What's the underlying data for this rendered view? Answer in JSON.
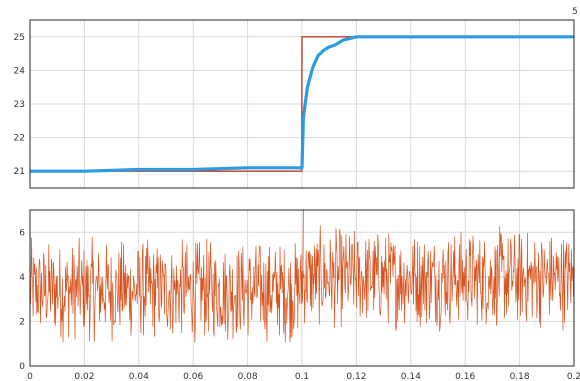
{
  "chart_data": [
    {
      "type": "line",
      "title": "",
      "xlabel": "",
      "ylabel": "",
      "xlim": [
        0,
        0.2
      ],
      "ylim": [
        20.5,
        25.5
      ],
      "grid": true,
      "yticks": [
        "21",
        "22",
        "23",
        "24",
        "25"
      ],
      "corner_label": "5",
      "series": [
        {
          "color": "#c0392b",
          "x": [
            0,
            0.0999,
            0.1,
            0.2
          ],
          "y": [
            21,
            21,
            25,
            25
          ]
        },
        {
          "color": "#2e9be0",
          "x": [
            0,
            0.02,
            0.04,
            0.06,
            0.08,
            0.099,
            0.1,
            0.1005,
            0.102,
            0.104,
            0.106,
            0.108,
            0.11,
            0.112,
            0.115,
            0.12,
            0.13,
            0.15,
            0.17,
            0.2
          ],
          "y": [
            21,
            21.0,
            21.05,
            21.05,
            21.1,
            21.1,
            21.1,
            22.6,
            23.5,
            24.1,
            24.45,
            24.6,
            24.7,
            24.75,
            24.9,
            25,
            25,
            25,
            25,
            25
          ]
        }
      ]
    },
    {
      "type": "line",
      "title": "",
      "xlabel": "",
      "ylabel": "",
      "xlim": [
        0,
        0.2
      ],
      "ylim": [
        0,
        7
      ],
      "grid": true,
      "yticks": [
        "0",
        "2",
        "4",
        "6"
      ],
      "xticks": [
        "0",
        "0.02",
        "0.04",
        "0.06",
        "0.08",
        "0.1",
        "0.12",
        "0.14",
        "0.16",
        "0.18",
        "0.2"
      ],
      "series": [
        {
          "color": "#d9531e",
          "segments": [
            {
              "x_range": [
                0,
                0.1
              ],
              "low": 0.9,
              "high": 5.9
            },
            {
              "x_range": [
                0.1,
                0.2
              ],
              "low": 1.5,
              "high": 6.4
            }
          ],
          "spike": {
            "x": 0.1,
            "y": 7
          }
        }
      ]
    }
  ],
  "colors": {
    "grid": "#d9d9d9",
    "axis": "#262626",
    "reference": "#c0392b",
    "response": "#2e9be0",
    "signal": "#d9531e"
  }
}
